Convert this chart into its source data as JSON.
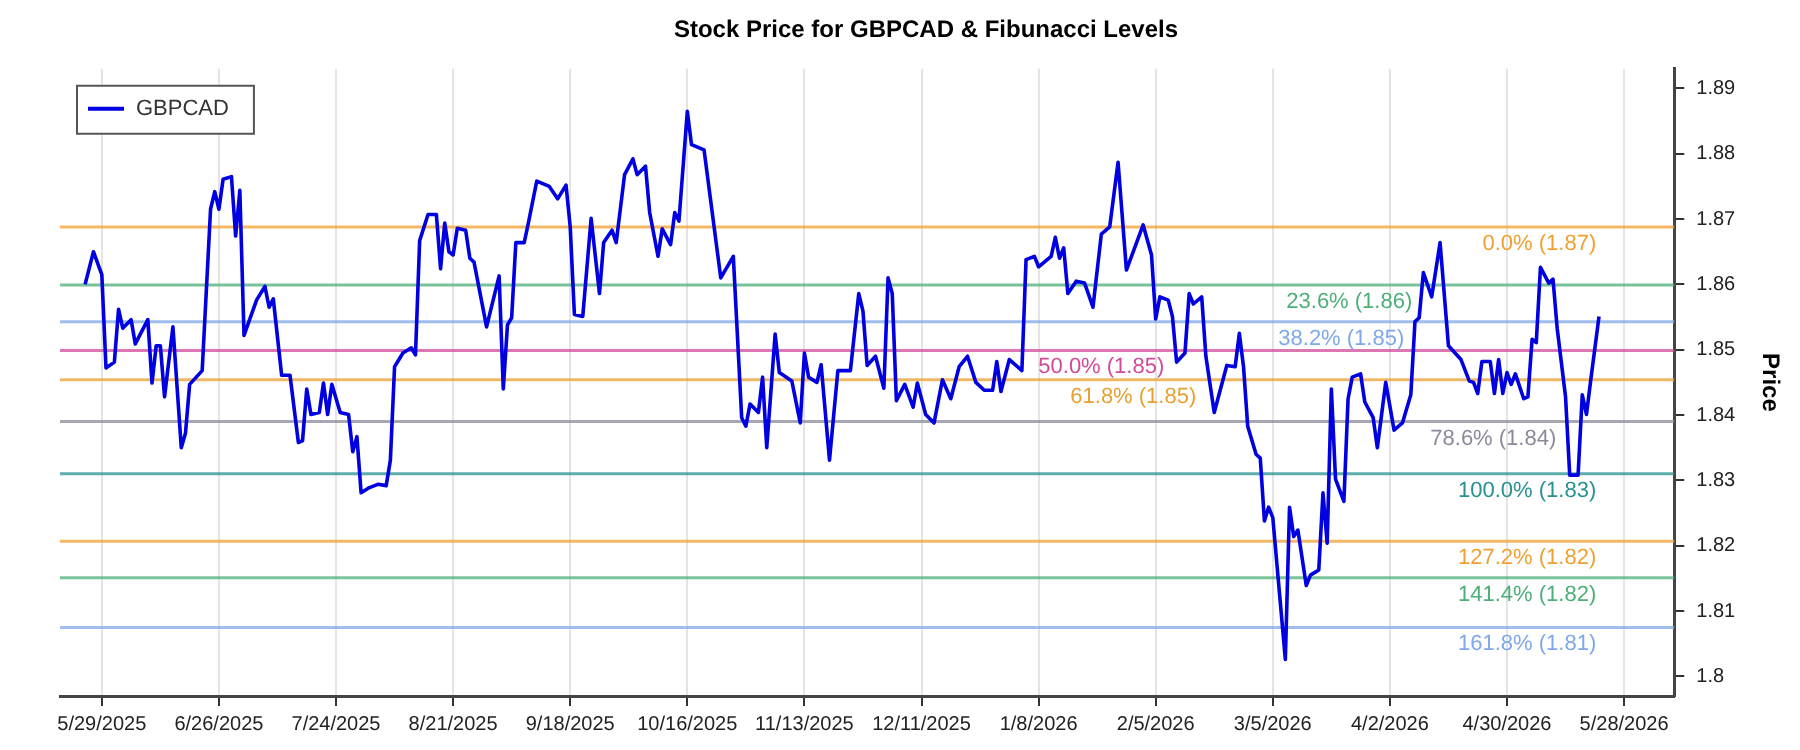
{
  "chart_data": {
    "type": "line",
    "title": "Stock Price for GBPCAD & Fibunacci Levels",
    "ylabel": "Price",
    "series": [
      {
        "name": "GBPCAD",
        "color": "#0000e0",
        "x": [
          "2025-05-25",
          "2025-05-27",
          "2025-05-29",
          "2025-05-30",
          "2025-06-01",
          "2025-06-02",
          "2025-06-03",
          "2025-06-05",
          "2025-06-06",
          "2025-06-09",
          "2025-06-10",
          "2025-06-11",
          "2025-06-12",
          "2025-06-13",
          "2025-06-15",
          "2025-06-17",
          "2025-06-18",
          "2025-06-19",
          "2025-06-22",
          "2025-06-24",
          "2025-06-25",
          "2025-06-26",
          "2025-06-27",
          "2025-06-29",
          "2025-06-30",
          "2025-07-01",
          "2025-07-02",
          "2025-07-05",
          "2025-07-07",
          "2025-07-08",
          "2025-07-09",
          "2025-07-11",
          "2025-07-13",
          "2025-07-15",
          "2025-07-16",
          "2025-07-17",
          "2025-07-18",
          "2025-07-20",
          "2025-07-21",
          "2025-07-22",
          "2025-07-23",
          "2025-07-25",
          "2025-07-27",
          "2025-07-28",
          "2025-07-29",
          "2025-07-30",
          "2025-08-01",
          "2025-08-03",
          "2025-08-05",
          "2025-08-06",
          "2025-08-07",
          "2025-08-09",
          "2025-08-11",
          "2025-08-12",
          "2025-08-13",
          "2025-08-15",
          "2025-08-17",
          "2025-08-18",
          "2025-08-19",
          "2025-08-20",
          "2025-08-21",
          "2025-08-22",
          "2025-08-24",
          "2025-08-25",
          "2025-08-26",
          "2025-08-29",
          "2025-09-01",
          "2025-09-02",
          "2025-09-03",
          "2025-09-04",
          "2025-09-05",
          "2025-09-07",
          "2025-09-08",
          "2025-09-10",
          "2025-09-13",
          "2025-09-15",
          "2025-09-17",
          "2025-09-18",
          "2025-09-19",
          "2025-09-21",
          "2025-09-23",
          "2025-09-25",
          "2025-09-26",
          "2025-09-28",
          "2025-09-29",
          "2025-10-01",
          "2025-10-03",
          "2025-10-04",
          "2025-10-06",
          "2025-10-07",
          "2025-10-09",
          "2025-10-10",
          "2025-10-12",
          "2025-10-13",
          "2025-10-14",
          "2025-10-16",
          "2025-10-17",
          "2025-10-20",
          "2025-10-24",
          "2025-10-27",
          "2025-10-29",
          "2025-10-30",
          "2025-10-31",
          "2025-11-02",
          "2025-11-03",
          "2025-11-04",
          "2025-11-06",
          "2025-11-07",
          "2025-11-10",
          "2025-11-12",
          "2025-11-13",
          "2025-11-14",
          "2025-11-16",
          "2025-11-17",
          "2025-11-19",
          "2025-11-21",
          "2025-11-24",
          "2025-11-26",
          "2025-11-27",
          "2025-11-28",
          "2025-11-30",
          "2025-12-02",
          "2025-12-03",
          "2025-12-04",
          "2025-12-05",
          "2025-12-07",
          "2025-12-09",
          "2025-12-10",
          "2025-12-12",
          "2025-12-14",
          "2025-12-16",
          "2025-12-18",
          "2025-12-20",
          "2025-12-22",
          "2025-12-24",
          "2025-12-26",
          "2025-12-28",
          "2025-12-29",
          "2025-12-30",
          "2026-01-01",
          "2026-01-04",
          "2026-01-05",
          "2026-01-07",
          "2026-01-08",
          "2026-01-11",
          "2026-01-12",
          "2026-01-13",
          "2026-01-14",
          "2026-01-15",
          "2026-01-17",
          "2026-01-19",
          "2026-01-21",
          "2026-01-23",
          "2026-01-25",
          "2026-01-27",
          "2026-01-29",
          "2026-02-02",
          "2026-02-04",
          "2026-02-05",
          "2026-02-06",
          "2026-02-08",
          "2026-02-09",
          "2026-02-10",
          "2026-02-12",
          "2026-02-13",
          "2026-02-14",
          "2026-02-16",
          "2026-02-17",
          "2026-02-19",
          "2026-02-20",
          "2026-02-22",
          "2026-02-24",
          "2026-02-25",
          "2026-02-26",
          "2026-02-27",
          "2026-03-01",
          "2026-03-02",
          "2026-03-03",
          "2026-03-04",
          "2026-03-05",
          "2026-03-08",
          "2026-03-09",
          "2026-03-10",
          "2026-03-11",
          "2026-03-13",
          "2026-03-14",
          "2026-03-16",
          "2026-03-17",
          "2026-03-18",
          "2026-03-19",
          "2026-03-20",
          "2026-03-22",
          "2026-03-23",
          "2026-03-24",
          "2026-03-26",
          "2026-03-27",
          "2026-03-29",
          "2026-03-30",
          "2026-04-01",
          "2026-04-03",
          "2026-04-05",
          "2026-04-07",
          "2026-04-08",
          "2026-04-09",
          "2026-04-10",
          "2026-04-12",
          "2026-04-14",
          "2026-04-16",
          "2026-04-19",
          "2026-04-21",
          "2026-04-22",
          "2026-04-23",
          "2026-04-24",
          "2026-04-26",
          "2026-04-27",
          "2026-04-28",
          "2026-04-29",
          "2026-04-30",
          "2026-05-01",
          "2026-05-02",
          "2026-05-04",
          "2026-05-05",
          "2026-05-06",
          "2026-05-07",
          "2026-05-08",
          "2026-05-10",
          "2026-05-11",
          "2026-05-12",
          "2026-05-14",
          "2026-05-15",
          "2026-05-17",
          "2026-05-18",
          "2026-05-19",
          "2026-05-20",
          "2026-05-22"
        ],
        "values": [
          1.86,
          1.865,
          1.8615,
          1.8472,
          1.8481,
          1.8562,
          1.8533,
          1.8546,
          1.8509,
          1.8546,
          1.8449,
          1.8506,
          1.8506,
          1.8428,
          1.8535,
          1.835,
          1.8372,
          1.8447,
          1.8468,
          1.8715,
          1.8742,
          1.8715,
          1.8761,
          1.8765,
          1.8674,
          1.8744,
          1.8522,
          1.8576,
          1.8597,
          1.8565,
          1.8578,
          1.8461,
          1.8461,
          1.8358,
          1.8361,
          1.844,
          1.8401,
          1.8404,
          1.8449,
          1.8401,
          1.8447,
          1.8404,
          1.8401,
          1.8344,
          1.8367,
          1.8281,
          1.8289,
          1.8294,
          1.8292,
          1.8331,
          1.8474,
          1.8495,
          1.8503,
          1.8492,
          1.8667,
          1.8707,
          1.8707,
          1.8624,
          1.8694,
          1.865,
          1.8645,
          1.8686,
          1.8683,
          1.864,
          1.8634,
          1.8535,
          1.8613,
          1.844,
          1.8538,
          1.8549,
          1.8664,
          1.8664,
          1.8694,
          1.8758,
          1.875,
          1.8731,
          1.8752,
          1.8688,
          1.8554,
          1.8551,
          1.8701,
          1.8586,
          1.8664,
          1.8683,
          1.8664,
          1.8768,
          1.8792,
          1.8768,
          1.8781,
          1.871,
          1.8643,
          1.8685,
          1.8661,
          1.871,
          1.8697,
          1.8865,
          1.8814,
          1.8806,
          1.861,
          1.8643,
          1.8396,
          1.8383,
          1.8417,
          1.8404,
          1.8458,
          1.835,
          1.8524,
          1.8465,
          1.8452,
          1.8388,
          1.8495,
          1.8458,
          1.845,
          1.8477,
          1.8331,
          1.8468,
          1.8468,
          1.8586,
          1.8559,
          1.8476,
          1.849,
          1.8441,
          1.861,
          1.8586,
          1.8422,
          1.8447,
          1.8412,
          1.8449,
          1.8401,
          1.8388,
          1.8454,
          1.8425,
          1.8474,
          1.849,
          1.845,
          1.8438,
          1.8438,
          1.8482,
          1.8436,
          1.8485,
          1.8468,
          1.8638,
          1.8643,
          1.8627,
          1.8643,
          1.8672,
          1.864,
          1.8656,
          1.8586,
          1.8605,
          1.8602,
          1.8565,
          1.8677,
          1.8688,
          1.8787,
          1.8622,
          1.8691,
          1.8645,
          1.8547,
          1.8581,
          1.8576,
          1.8551,
          1.8481,
          1.8495,
          1.8586,
          1.857,
          1.8581,
          1.849,
          1.8404,
          1.8428,
          1.8476,
          1.8474,
          1.8525,
          1.8474,
          1.8383,
          1.834,
          1.8334,
          1.8238,
          1.8259,
          1.8243,
          1.8026,
          1.8259,
          1.8214,
          1.8224,
          1.8139,
          1.8155,
          1.8163,
          1.8281,
          1.8204,
          1.844,
          1.8302,
          1.8268,
          1.8425,
          1.8458,
          1.8463,
          1.842,
          1.8396,
          1.835,
          1.845,
          1.8377,
          1.8388,
          1.8431,
          1.8543,
          1.8549,
          1.8618,
          1.8581,
          1.8664,
          1.8506,
          1.8485,
          1.8452,
          1.845,
          1.8433,
          1.8482,
          1.8482,
          1.8433,
          1.8485,
          1.8433,
          1.8465,
          1.8447,
          1.8463,
          1.8425,
          1.8428,
          1.8516,
          1.8511,
          1.8626,
          1.8602,
          1.8608,
          1.8533,
          1.8428,
          1.8308,
          1.8308,
          1.8431,
          1.8401,
          1.8452,
          1.8551
        ]
      }
    ],
    "xlim": [
      "2025-05-19",
      "2026-06-09"
    ],
    "xticks": [
      {
        "value": "2025-05-29",
        "label": "5/29/2025"
      },
      {
        "value": "2025-06-26",
        "label": "6/26/2025"
      },
      {
        "value": "2025-07-24",
        "label": "7/24/2025"
      },
      {
        "value": "2025-08-21",
        "label": "8/21/2025"
      },
      {
        "value": "2025-09-18",
        "label": "9/18/2025"
      },
      {
        "value": "2025-10-16",
        "label": "10/16/2025"
      },
      {
        "value": "2025-11-13",
        "label": "11/13/2025"
      },
      {
        "value": "2025-12-11",
        "label": "12/11/2025"
      },
      {
        "value": "2026-01-08",
        "label": "1/8/2026"
      },
      {
        "value": "2026-02-05",
        "label": "2/5/2026"
      },
      {
        "value": "2026-03-05",
        "label": "3/5/2026"
      },
      {
        "value": "2026-04-02",
        "label": "4/2/2026"
      },
      {
        "value": "2026-04-30",
        "label": "4/30/2026"
      },
      {
        "value": "2026-05-28",
        "label": "5/28/2026"
      }
    ],
    "ylim": [
      1.797,
      1.893
    ],
    "yticks": [
      1.8,
      1.81,
      1.82,
      1.83,
      1.84,
      1.85,
      1.86,
      1.87,
      1.88,
      1.89
    ],
    "ref_lines": [
      {
        "axis": "y",
        "value": 1.8688,
        "label": "0.0% (1.87)",
        "color": "#f0a030"
      },
      {
        "axis": "y",
        "value": 1.8599,
        "label": "23.6% (1.86)",
        "color": "#4caf78"
      },
      {
        "axis": "y",
        "value": 1.8543,
        "label": "38.2% (1.85)",
        "color": "#7fa8e8"
      },
      {
        "axis": "y",
        "value": 1.8499,
        "label": "50.0% (1.85)",
        "color": "#d04a9a"
      },
      {
        "axis": "y",
        "value": 1.8454,
        "label": "61.8% (1.85)",
        "color": "#e8a030"
      },
      {
        "axis": "y",
        "value": 1.839,
        "label": "78.6% (1.84)",
        "color": "#8a8a9a"
      },
      {
        "axis": "y",
        "value": 1.831,
        "label": "100.0% (1.83)",
        "color": "#2a9090"
      },
      {
        "axis": "y",
        "value": 1.8207,
        "label": "127.2% (1.82)",
        "color": "#f0a030"
      },
      {
        "axis": "y",
        "value": 1.8151,
        "label": "141.4% (1.82)",
        "color": "#4caf78"
      },
      {
        "axis": "y",
        "value": 1.8075,
        "label": "161.8% (1.81)",
        "color": "#7fa8e8"
      }
    ],
    "grid": "x",
    "legend": "top left",
    "marker": "none",
    "line_style": "solid"
  }
}
